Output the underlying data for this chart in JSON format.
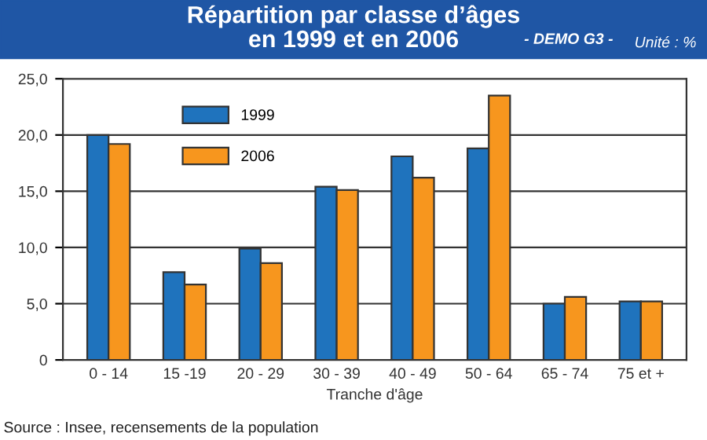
{
  "chart_data": {
    "type": "bar",
    "title": "Répartition par classe d’âges\nen 1999 et en 2006",
    "subtitle": "- DEMO G3 -",
    "xlabel": "Tranche d'âge",
    "annotations": [
      "Unité : %",
      "Source : Insee, recensements de la population"
    ],
    "categories": [
      "0 - 14",
      "15 -19",
      "20 - 29",
      "30 - 39",
      "40 - 49",
      "50 - 64",
      "65 - 74",
      "75 et +"
    ],
    "series": [
      {
        "name": "1999",
        "color": "#1f73bd",
        "values": [
          20.0,
          7.8,
          9.9,
          15.4,
          18.1,
          18.8,
          5.0,
          5.2
        ]
      },
      {
        "name": "2006",
        "color": "#f7961e",
        "values": [
          19.2,
          6.7,
          8.6,
          15.1,
          16.2,
          23.5,
          5.6,
          5.2
        ]
      }
    ],
    "ylim": [
      0,
      25
    ],
    "yticks": [
      0,
      {
        "value": 5,
        "label": "5,0"
      },
      {
        "value": 10,
        "label": "10,0"
      },
      {
        "value": 15,
        "label": "15,0"
      },
      {
        "value": 20,
        "label": "20,0"
      },
      {
        "value": 25,
        "label": "25,0"
      }
    ],
    "grid": "y",
    "legend": "top left"
  }
}
